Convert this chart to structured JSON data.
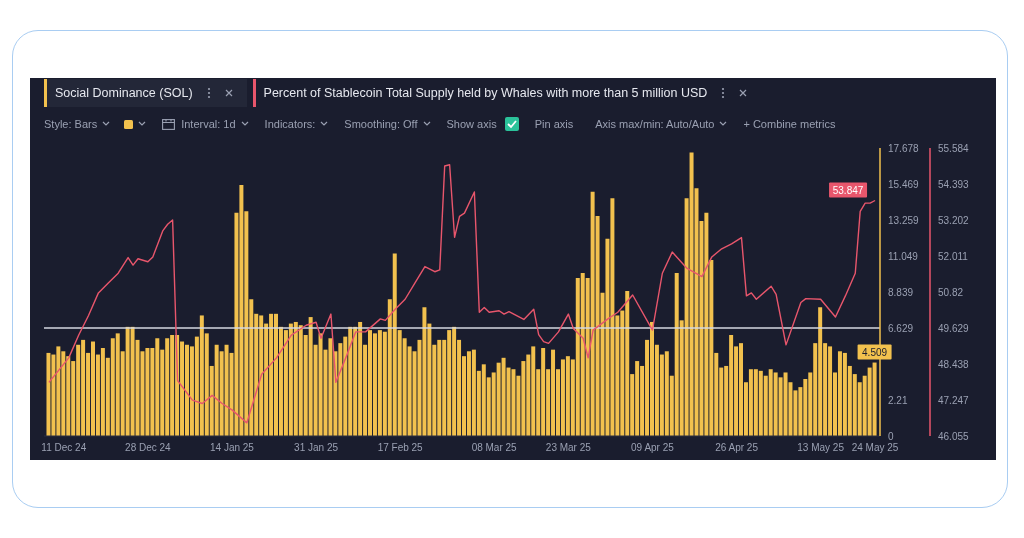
{
  "chart_data": {
    "type": "bar",
    "x": [
      "2024-12-08",
      "2024-12-09",
      "2024-12-10",
      "2024-12-11",
      "2024-12-12",
      "2024-12-13",
      "2024-12-14",
      "2024-12-15",
      "2024-12-16",
      "2024-12-17",
      "2024-12-18",
      "2024-12-19",
      "2024-12-20",
      "2024-12-21",
      "2024-12-22",
      "2024-12-23",
      "2024-12-24",
      "2024-12-25",
      "2024-12-26",
      "2024-12-27",
      "2024-12-28",
      "2024-12-29",
      "2024-12-30",
      "2024-12-31",
      "2025-01-01",
      "2025-01-02",
      "2025-01-03",
      "2025-01-04",
      "2025-01-05",
      "2025-01-06",
      "2025-01-07",
      "2025-01-08",
      "2025-01-09",
      "2025-01-10",
      "2025-01-11",
      "2025-01-12",
      "2025-01-13",
      "2025-01-14",
      "2025-01-15",
      "2025-01-16",
      "2025-01-17",
      "2025-01-18",
      "2025-01-19",
      "2025-01-20",
      "2025-01-21",
      "2025-01-22",
      "2025-01-23",
      "2025-01-24",
      "2025-01-25",
      "2025-01-26",
      "2025-01-27",
      "2025-01-28",
      "2025-01-29",
      "2025-01-30",
      "2025-01-31",
      "2025-02-01",
      "2025-02-02",
      "2025-02-03",
      "2025-02-04",
      "2025-02-05",
      "2025-02-06",
      "2025-02-07",
      "2025-02-08",
      "2025-02-09",
      "2025-02-10",
      "2025-02-11",
      "2025-02-12",
      "2025-02-13",
      "2025-02-14",
      "2025-02-15",
      "2025-02-16",
      "2025-02-17",
      "2025-02-18",
      "2025-02-19",
      "2025-02-20",
      "2025-02-21",
      "2025-02-22",
      "2025-02-23",
      "2025-02-24",
      "2025-02-25",
      "2025-02-26",
      "2025-02-27",
      "2025-02-28",
      "2025-03-01",
      "2025-03-02",
      "2025-03-03",
      "2025-03-04",
      "2025-03-05",
      "2025-03-06",
      "2025-03-07",
      "2025-03-08",
      "2025-03-09",
      "2025-03-10",
      "2025-03-11",
      "2025-03-12",
      "2025-03-13",
      "2025-03-14",
      "2025-03-15",
      "2025-03-16",
      "2025-03-17",
      "2025-03-18",
      "2025-03-19",
      "2025-03-20",
      "2025-03-21",
      "2025-03-22",
      "2025-03-23",
      "2025-03-24",
      "2025-03-25",
      "2025-03-26",
      "2025-03-27",
      "2025-03-28",
      "2025-03-29",
      "2025-03-30",
      "2025-03-31",
      "2025-04-01",
      "2025-04-02",
      "2025-04-03",
      "2025-04-04",
      "2025-04-05",
      "2025-04-06",
      "2025-04-07",
      "2025-04-08",
      "2025-04-09",
      "2025-04-10",
      "2025-04-11",
      "2025-04-12",
      "2025-04-13",
      "2025-04-14",
      "2025-04-15",
      "2025-04-16",
      "2025-04-17",
      "2025-04-18",
      "2025-04-19",
      "2025-04-20",
      "2025-04-21",
      "2025-04-22",
      "2025-04-23",
      "2025-04-24",
      "2025-04-25",
      "2025-04-26",
      "2025-04-27",
      "2025-04-28",
      "2025-04-29",
      "2025-04-30",
      "2025-05-01",
      "2025-05-02",
      "2025-05-03",
      "2025-05-04",
      "2025-05-05",
      "2025-05-06",
      "2025-05-07",
      "2025-05-08",
      "2025-05-09",
      "2025-05-10",
      "2025-05-11",
      "2025-05-12",
      "2025-05-13",
      "2025-05-14",
      "2025-05-15",
      "2025-05-16",
      "2025-05-17",
      "2025-05-18",
      "2025-05-19",
      "2025-05-20",
      "2025-05-21",
      "2025-05-22",
      "2025-05-23",
      "2025-05-24"
    ],
    "series": [
      {
        "name": "Social Dominance (SOL)",
        "axis": "y",
        "color": "#f2c14e",
        "values": [
          5.1,
          5.0,
          5.5,
          5.2,
          4.9,
          4.6,
          5.6,
          5.9,
          5.1,
          5.8,
          5.0,
          5.4,
          4.8,
          6.0,
          6.3,
          5.2,
          6.7,
          6.7,
          5.9,
          5.2,
          5.4,
          5.4,
          6.0,
          5.3,
          6.0,
          6.2,
          6.2,
          5.8,
          5.6,
          5.5,
          6.1,
          7.4,
          6.3,
          4.3,
          5.6,
          5.2,
          5.6,
          5.1,
          13.7,
          15.4,
          13.8,
          8.4,
          7.5,
          7.4,
          6.9,
          7.5,
          7.5,
          6.7,
          6.5,
          6.9,
          7.0,
          6.8,
          6.2,
          7.3,
          5.6,
          6.3,
          5.3,
          6.0,
          5.2,
          5.7,
          6.1,
          6.7,
          6.7,
          7.0,
          5.6,
          6.5,
          6.3,
          6.5,
          6.4,
          8.4,
          11.2,
          6.5,
          6.0,
          5.5,
          5.2,
          5.9,
          7.9,
          6.9,
          5.6,
          5.9,
          5.9,
          6.5,
          6.7,
          5.9,
          4.9,
          5.2,
          5.3,
          4.0,
          4.4,
          3.6,
          3.9,
          4.5,
          4.8,
          4.2,
          4.1,
          3.7,
          4.6,
          5.0,
          5.5,
          4.1,
          5.4,
          4.1,
          5.3,
          4.1,
          4.7,
          4.9,
          4.7,
          9.7,
          10.0,
          9.7,
          15.0,
          13.5,
          8.8,
          12.1,
          14.6,
          7.4,
          7.7,
          8.9,
          3.8,
          4.6,
          4.3,
          5.9,
          7.0,
          5.6,
          5.0,
          5.2,
          3.7,
          10.0,
          7.1,
          14.6,
          17.4,
          15.2,
          13.2,
          13.7,
          10.8,
          5.1,
          4.2,
          4.3,
          6.2,
          5.5,
          5.7,
          3.3,
          4.1,
          4.1,
          4.0,
          3.7,
          4.1,
          3.9,
          3.6,
          3.9,
          3.3,
          2.8,
          3.0,
          3.5,
          3.9,
          5.7,
          7.9,
          5.7,
          5.5,
          3.9,
          5.2,
          5.1,
          4.3,
          3.8,
          3.3,
          3.7,
          4.2,
          4.509
        ],
        "value_labels": [
          null,
          null,
          null,
          null,
          null,
          null,
          null,
          null,
          null,
          null,
          null,
          null,
          null,
          null,
          null,
          null,
          null,
          null,
          null,
          null,
          null,
          null,
          null,
          null,
          null,
          null,
          null,
          null,
          null,
          null,
          null,
          null,
          null,
          null,
          null,
          null,
          null,
          null,
          null,
          null,
          null,
          null,
          null,
          null,
          null,
          null,
          null,
          null,
          null,
          null,
          null,
          null,
          null,
          null,
          null,
          null,
          null,
          null,
          null,
          null,
          null,
          null,
          null,
          null,
          null,
          null,
          null,
          null,
          null,
          null,
          null,
          null,
          null,
          null,
          null,
          null,
          null,
          null,
          null,
          null,
          null,
          null,
          null,
          null,
          null,
          null,
          null,
          null,
          null,
          null,
          null,
          null,
          null,
          null,
          null,
          null,
          null,
          null,
          null,
          null,
          null,
          null,
          null,
          null,
          null,
          null,
          null,
          null,
          null,
          null,
          null,
          null,
          null,
          null,
          null,
          null,
          null,
          null,
          null,
          null,
          null,
          null,
          null,
          null,
          null,
          null,
          null,
          null,
          null,
          null,
          null,
          null,
          null,
          null,
          null,
          null,
          null,
          null,
          null,
          null,
          null,
          null,
          null,
          null,
          null,
          null,
          null,
          null,
          null,
          null,
          null,
          null,
          null,
          null,
          null,
          null,
          null,
          null,
          null,
          null,
          null,
          null,
          null,
          null,
          null,
          null,
          null,
          "4.509"
        ]
      },
      {
        "name": "Percent of Stablecoin Total Supply held by Whales with more than 5 million USD",
        "type": "line",
        "axis": "y2",
        "color": "#e8566c",
        "x": [
          "2024-12-08",
          "2024-12-12",
          "2024-12-14",
          "2024-12-16",
          "2024-12-18",
          "2024-12-20",
          "2024-12-22",
          "2024-12-24",
          "2024-12-25",
          "2024-12-26",
          "2024-12-28",
          "2024-12-29",
          "2024-12-31",
          "2025-01-01",
          "2025-01-02",
          "2025-01-03",
          "2025-01-06",
          "2025-01-08",
          "2025-01-10",
          "2025-01-12",
          "2025-01-14",
          "2025-01-17",
          "2025-01-20",
          "2025-01-23",
          "2025-01-26",
          "2025-01-29",
          "2025-01-31",
          "2025-02-01",
          "2025-02-03",
          "2025-02-04",
          "2025-02-06",
          "2025-02-08",
          "2025-02-10",
          "2025-02-13",
          "2025-02-14",
          "2025-02-16",
          "2025-02-18",
          "2025-02-20",
          "2025-02-22",
          "2025-02-24",
          "2025-02-25",
          "2025-02-26",
          "2025-02-27",
          "2025-02-28",
          "2025-03-01",
          "2025-03-02",
          "2025-03-04",
          "2025-03-05",
          "2025-03-06",
          "2025-03-07",
          "2025-03-09",
          "2025-03-10",
          "2025-03-11",
          "2025-03-14",
          "2025-03-16",
          "2025-03-17",
          "2025-03-18",
          "2025-03-19",
          "2025-03-21",
          "2025-03-23",
          "2025-03-24",
          "2025-03-26",
          "2025-03-27",
          "2025-03-28",
          "2025-03-31",
          "2025-04-02",
          "2025-04-05",
          "2025-04-09",
          "2025-04-11",
          "2025-04-13",
          "2025-04-16",
          "2025-04-19",
          "2025-04-21",
          "2025-04-23",
          "2025-04-25",
          "2025-04-27",
          "2025-04-28",
          "2025-04-29",
          "2025-04-30",
          "2025-05-03",
          "2025-05-04",
          "2025-05-06",
          "2025-05-09",
          "2025-05-10",
          "2025-05-13",
          "2025-05-16",
          "2025-05-18",
          "2025-05-20",
          "2025-05-21",
          "2025-05-22",
          "2025-05-23",
          "2025-05-24"
        ],
        "values": [
          47.83,
          48.64,
          49.39,
          50.04,
          50.79,
          51.12,
          51.44,
          51.96,
          51.71,
          51.92,
          51.82,
          51.98,
          52.84,
          53.06,
          53.2,
          47.89,
          47.24,
          47.13,
          47.4,
          47.13,
          46.92,
          46.49,
          48.1,
          48.64,
          49.39,
          49.72,
          49.82,
          49.29,
          50.09,
          47.83,
          48.64,
          49.5,
          49.5,
          49.93,
          49.88,
          50.25,
          50.58,
          51.12,
          51.66,
          51.49,
          51.55,
          54.99,
          55.03,
          52.63,
          53.32,
          53.43,
          54.13,
          50.15,
          50.31,
          50.15,
          50.2,
          50.09,
          50.17,
          49.91,
          50.25,
          49.41,
          49.18,
          49.12,
          49.5,
          50.09,
          49.61,
          49.29,
          48.64,
          49.56,
          49.93,
          50.15,
          50.72,
          49.56,
          51.44,
          52.14,
          51.6,
          51.33,
          51.98,
          52.25,
          52.41,
          52.62,
          50.69,
          50.79,
          50.58,
          51.01,
          50.74,
          49.07,
          50.47,
          50.6,
          50.58,
          49.99,
          50.69,
          51.44,
          53.49,
          53.76,
          53.76,
          53.847
        ],
        "value_labels": [
          null,
          null,
          null,
          null,
          null,
          null,
          null,
          null,
          null,
          null,
          null,
          null,
          null,
          null,
          null,
          null,
          null,
          null,
          null,
          null,
          null,
          null,
          null,
          null,
          null,
          null,
          null,
          null,
          null,
          null,
          null,
          null,
          null,
          null,
          null,
          null,
          null,
          null,
          null,
          null,
          null,
          null,
          null,
          null,
          null,
          null,
          null,
          null,
          null,
          null,
          null,
          null,
          null,
          null,
          null,
          null,
          null,
          null,
          null,
          null,
          null,
          null,
          null,
          null,
          null,
          null,
          null,
          null,
          null,
          null,
          null,
          null,
          null,
          null,
          null,
          null,
          null,
          null,
          null,
          null,
          null,
          null,
          null,
          null,
          null,
          null,
          null,
          null,
          null,
          null,
          null,
          "53.847"
        ]
      }
    ],
    "xlim": [
      "2024-12-07",
      "2025-05-25"
    ],
    "xticks": [
      {
        "value": "2024-12-11",
        "label": "11 Dec 24"
      },
      {
        "value": "2024-12-28",
        "label": "28 Dec 24"
      },
      {
        "value": "2025-01-14",
        "label": "14 Jan 25"
      },
      {
        "value": "2025-01-31",
        "label": "31 Jan 25"
      },
      {
        "value": "2025-02-17",
        "label": "17 Feb 25"
      },
      {
        "value": "2025-03-08",
        "label": "08 Mar 25"
      },
      {
        "value": "2025-03-23",
        "label": "23 Mar 25"
      },
      {
        "value": "2025-04-09",
        "label": "09 Apr 25"
      },
      {
        "value": "2025-04-26",
        "label": "26 Apr 25"
      },
      {
        "value": "2025-05-13",
        "label": "13 May 25"
      },
      {
        "value": "2025-05-24",
        "label": "24 May 25"
      }
    ],
    "ylim": [
      0,
      17.678
    ],
    "yticks": [
      0,
      2.21,
      6.629,
      8.839,
      11.049,
      13.259,
      15.469,
      17.678
    ],
    "y2lim": [
      46.055,
      55.584
    ],
    "y2ticks": [
      46.055,
      47.247,
      48.438,
      49.629,
      50.82,
      52.011,
      53.202,
      54.393,
      55.584
    ],
    "ref_lines": [
      {
        "axis": "y",
        "value": 6.629,
        "color": "#d4d7e0"
      }
    ],
    "legend": "top left",
    "grid": false,
    "marker": "none",
    "line_style": "solid",
    "annotations": [
      "Style: Bars",
      "Interval: 1d",
      "Indicators:",
      "Smoothing: Off",
      "Show axis",
      "Pin axis",
      "Axis max/min: Auto/Auto",
      "+ Combine metrics"
    ]
  }
}
